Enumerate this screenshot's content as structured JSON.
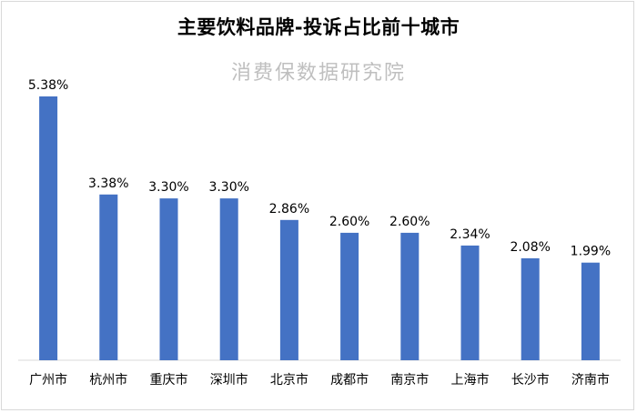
{
  "chart_data": {
    "type": "bar",
    "title": "主要饮料品牌-投诉占比前十城市",
    "watermark": "消费保数据研究院",
    "categories": [
      "广州市",
      "杭州市",
      "重庆市",
      "深圳市",
      "北京市",
      "成都市",
      "南京市",
      "上海市",
      "长沙市",
      "济南市"
    ],
    "values": [
      5.38,
      3.38,
      3.3,
      3.3,
      2.86,
      2.6,
      2.6,
      2.34,
      2.08,
      1.99
    ],
    "labels": [
      "5.38%",
      "3.38%",
      "3.30%",
      "3.30%",
      "2.86%",
      "2.60%",
      "2.60%",
      "2.34%",
      "2.08%",
      "1.99%"
    ],
    "ylim": [
      0,
      5.38
    ],
    "grid": false,
    "bar_color": "#4472C4"
  }
}
